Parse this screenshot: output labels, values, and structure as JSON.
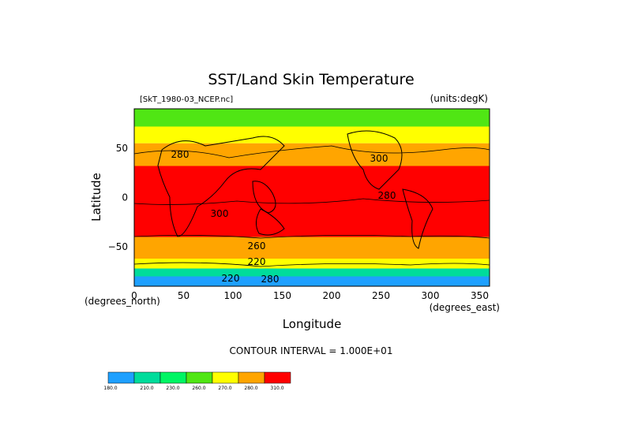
{
  "chart_data": {
    "type": "heatmap",
    "title": "SST/Land Skin Temperature",
    "subtitle_left": "[SkT_1980-03_NCEP.nc]",
    "subtitle_right": "(units:degK)",
    "xlabel": "Longitude",
    "ylabel": "Latitude",
    "x_units": "(degrees_east)",
    "y_units": "(degrees_north)",
    "xlim": [
      0,
      360
    ],
    "ylim": [
      -90,
      90
    ],
    "xticks": [
      "0",
      "50",
      "100",
      "150",
      "200",
      "250",
      "300",
      "350"
    ],
    "yticks": [
      "50",
      "0",
      "−50"
    ],
    "ytick_values": [
      50,
      0,
      -50
    ],
    "contour_interval": "CONTOUR INTERVAL = 1.000E+01",
    "contour_labels": [
      "280",
      "300",
      "300",
      "280",
      "260",
      "220",
      "220",
      "280"
    ],
    "colorbar": {
      "colors": [
        "#1ea0ff",
        "#00dc9b",
        "#00f564",
        "#50e614",
        "#ffff00",
        "#ffa500",
        "#ff0000"
      ],
      "labels": [
        "180.0",
        "210.0",
        "230.0",
        "260.0",
        "270.0",
        "280.0",
        "310.0"
      ]
    },
    "zonal_bands": [
      {
        "lat_min": 72,
        "lat_max": 90,
        "value": 250,
        "color": "#50e614"
      },
      {
        "lat_min": 55,
        "lat_max": 72,
        "value": 265,
        "color": "#ffff00"
      },
      {
        "lat_min": 32,
        "lat_max": 55,
        "value": 280,
        "color": "#ffa500"
      },
      {
        "lat_min": -40,
        "lat_max": 32,
        "value": 300,
        "color": "#ff0000"
      },
      {
        "lat_min": -62,
        "lat_max": -40,
        "value": 280,
        "color": "#ffa500"
      },
      {
        "lat_min": -72,
        "lat_max": -62,
        "value": 265,
        "color": "#ffff00"
      },
      {
        "lat_min": -80,
        "lat_max": -72,
        "value": 240,
        "color": "#00dc9b"
      },
      {
        "lat_min": -90,
        "lat_max": -80,
        "value": 220,
        "color": "#1ea0ff"
      }
    ]
  }
}
